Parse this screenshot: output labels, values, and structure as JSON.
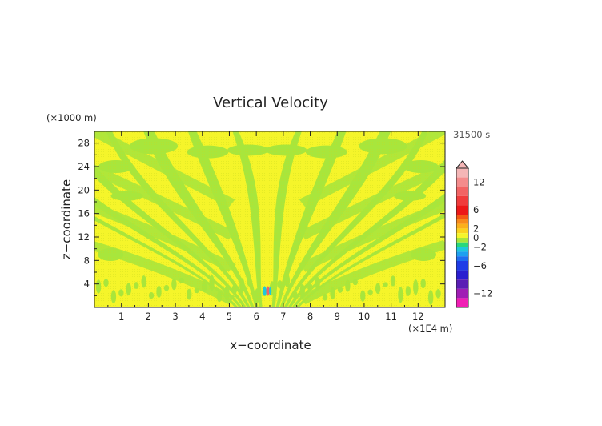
{
  "chart_data": {
    "type": "heatmap",
    "title": "Vertical Velocity",
    "xlabel": "x−coordinate",
    "ylabel": "z−coordinate",
    "x_unit": "(×1E4 m)",
    "y_unit": "(×1000 m)",
    "time_label": "31500 s",
    "xlim": [
      0,
      13
    ],
    "ylim": [
      0,
      30
    ],
    "x_ticks": [
      "1",
      "2",
      "3",
      "4",
      "5",
      "6",
      "7",
      "8",
      "9",
      "10",
      "11",
      "12"
    ],
    "y_ticks": [
      "4",
      "8",
      "12",
      "16",
      "20",
      "24",
      "28"
    ],
    "colorbar": {
      "range": [
        -15,
        15
      ],
      "tick_labels": [
        "12",
        "6",
        "2",
        "0",
        "−2",
        "−6",
        "−12"
      ],
      "tick_values": [
        12,
        6,
        2,
        0,
        -2,
        -6,
        -12
      ],
      "levels": [
        {
          "lo": 13,
          "hi": 15,
          "color": "#f4b6b6"
        },
        {
          "lo": 11,
          "hi": 13,
          "color": "#f48c8c"
        },
        {
          "lo": 9,
          "hi": 11,
          "color": "#f26464"
        },
        {
          "lo": 7,
          "hi": 9,
          "color": "#f03c3c"
        },
        {
          "lo": 5,
          "hi": 7,
          "color": "#ec1818"
        },
        {
          "lo": 4,
          "hi": 5,
          "color": "#f45a14"
        },
        {
          "lo": 3,
          "hi": 4,
          "color": "#f88a1c"
        },
        {
          "lo": 2,
          "hi": 3,
          "color": "#fbb01c"
        },
        {
          "lo": 1,
          "hi": 2,
          "color": "#fbd21e"
        },
        {
          "lo": 0,
          "hi": 1,
          "color": "#f5f52a"
        },
        {
          "lo": -1,
          "hi": 0,
          "color": "#a8e63c"
        },
        {
          "lo": -2,
          "hi": -1,
          "color": "#28d87c"
        },
        {
          "lo": -3,
          "hi": -2,
          "color": "#1ec8dc"
        },
        {
          "lo": -4,
          "hi": -3,
          "color": "#1ea0f0"
        },
        {
          "lo": -5,
          "hi": -4,
          "color": "#1e6ef0"
        },
        {
          "lo": -7,
          "hi": -5,
          "color": "#1e3ce6"
        },
        {
          "lo": -9,
          "hi": -7,
          "color": "#2a1ecf"
        },
        {
          "lo": -11,
          "hi": -9,
          "color": "#5a1eb4"
        },
        {
          "lo": -13,
          "hi": -11,
          "color": "#a01eb4"
        },
        {
          "lo": -15,
          "hi": -13,
          "color": "#f01eb4"
        }
      ]
    },
    "field": {
      "background_value": 0.5,
      "background_color": "#f5f52a",
      "pattern_value": -0.5,
      "pattern_color": "#a8e63c",
      "pattern": "symmetric fan of upward-spreading wave bands centred on x ≈ 6.4, with dense small-scale structure near the ground",
      "source": {
        "x": 6.4,
        "z": 2.8,
        "max": 10,
        "min": -3
      }
    }
  }
}
